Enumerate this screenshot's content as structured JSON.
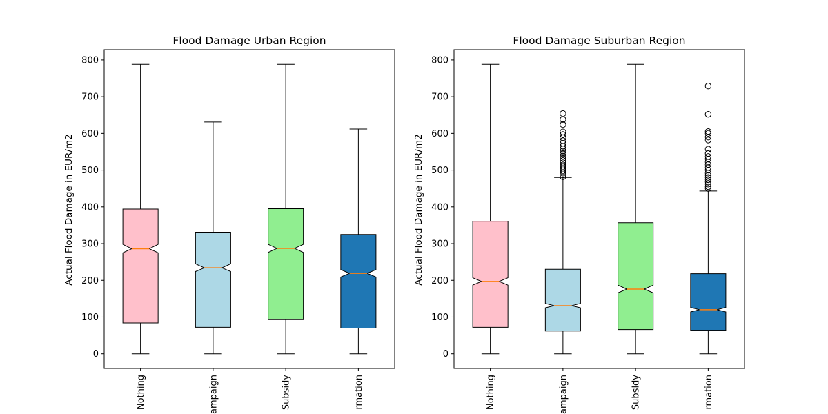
{
  "chart_data": [
    {
      "type": "box",
      "title": "Flood Damage Urban Region",
      "ylabel": "Actual Flood Damage in EUR/m2",
      "xlabel": "",
      "ylim": [
        -40,
        828
      ],
      "yticks": [
        0,
        100,
        200,
        300,
        400,
        500,
        600,
        700,
        800
      ],
      "categories": [
        "Nothing",
        "ampaign",
        "Subsidy",
        "rmation"
      ],
      "notched": true,
      "boxes": [
        {
          "category": "Nothing",
          "whisker_low": 0,
          "q1": 84,
          "median": 286,
          "q3": 394,
          "whisker_high": 788,
          "notch_low": 275,
          "notch_high": 298,
          "color": "#ffc0cb",
          "outliers": []
        },
        {
          "category": "ampaign",
          "whisker_low": 0,
          "q1": 72,
          "median": 234,
          "q3": 331,
          "whisker_high": 631,
          "notch_low": 224,
          "notch_high": 245,
          "color": "#add8e6",
          "outliers": []
        },
        {
          "category": "Subsidy",
          "whisker_low": 0,
          "q1": 93,
          "median": 287,
          "q3": 395,
          "whisker_high": 788,
          "notch_low": 276,
          "notch_high": 298,
          "color": "#90ee90",
          "outliers": []
        },
        {
          "category": "rmation",
          "whisker_low": 0,
          "q1": 70,
          "median": 219,
          "q3": 325,
          "whisker_high": 612,
          "notch_low": 209,
          "notch_high": 229,
          "color": "#1f77b4",
          "outliers": []
        }
      ],
      "median_color": "#ff7f0e",
      "grid": false
    },
    {
      "type": "box",
      "title": "Flood Damage Suburban Region",
      "ylabel": "Actual Flood Damage in EUR/m2",
      "xlabel": "",
      "ylim": [
        -40,
        828
      ],
      "yticks": [
        0,
        100,
        200,
        300,
        400,
        500,
        600,
        700,
        800
      ],
      "categories": [
        "Nothing",
        "ampaign",
        "Subsidy",
        "rmation"
      ],
      "notched": true,
      "boxes": [
        {
          "category": "Nothing",
          "whisker_low": 0,
          "q1": 72,
          "median": 197,
          "q3": 361,
          "whisker_high": 788,
          "notch_low": 187,
          "notch_high": 207,
          "color": "#ffc0cb",
          "outliers": []
        },
        {
          "category": "ampaign",
          "whisker_low": 0,
          "q1": 62,
          "median": 131,
          "q3": 230,
          "whisker_high": 480,
          "notch_low": 125,
          "notch_high": 137,
          "color": "#add8e6",
          "outliers": [
            482,
            487,
            492,
            498,
            503,
            509,
            514,
            520,
            526,
            532,
            538,
            545,
            552,
            558,
            565,
            573,
            580,
            588,
            597,
            604,
            624,
            638,
            654
          ]
        },
        {
          "category": "Subsidy",
          "whisker_low": 0,
          "q1": 66,
          "median": 176,
          "q3": 357,
          "whisker_high": 788,
          "notch_low": 166,
          "notch_high": 187,
          "color": "#90ee90",
          "outliers": []
        },
        {
          "category": "rmation",
          "whisker_low": 0,
          "q1": 64,
          "median": 120,
          "q3": 218,
          "whisker_high": 443,
          "notch_low": 114,
          "notch_high": 126,
          "color": "#1f77b4",
          "outliers": [
            450,
            455,
            462,
            468,
            474,
            480,
            486,
            492,
            500,
            507,
            515,
            522,
            530,
            537,
            545,
            557,
            582,
            590,
            600,
            605,
            652,
            729
          ]
        }
      ],
      "median_color": "#ff7f0e",
      "grid": false
    }
  ]
}
